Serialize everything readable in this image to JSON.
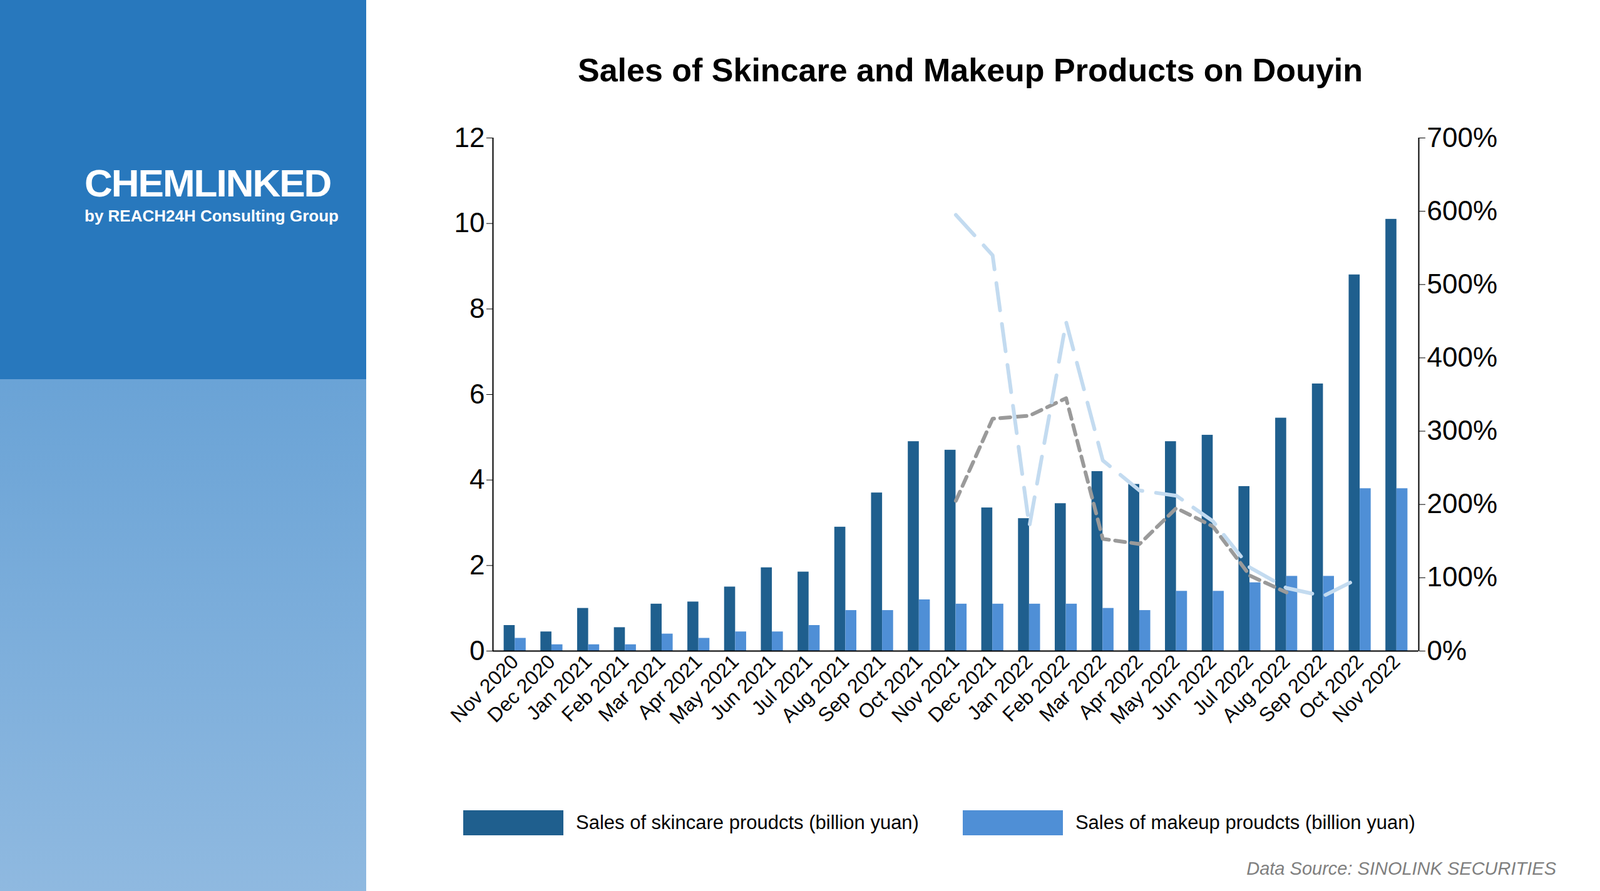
{
  "branding": {
    "logo": "CHEMLINKED",
    "tagline": "by REACH24H Consulting Group"
  },
  "chart_data": {
    "type": "bar",
    "title": "Sales of Skincare and Makeup Products on Douyin",
    "caption": "Data Source: SINOLINK SECURITIES",
    "categories": [
      "Nov 2020",
      "Dec 2020",
      "Jan 2021",
      "Feb 2021",
      "Mar 2021",
      "Apr 2021",
      "May 2021",
      "Jun 2021",
      "Jul 2021",
      "Aug 2021",
      "Sep 2021",
      "Oct 2021",
      "Nov 2021",
      "Dec 2021",
      "Jan 2022",
      "Feb 2022",
      "Mar 2022",
      "Apr 2022",
      "May 2022",
      "Jun 2022",
      "Jul 2022",
      "Aug 2022",
      "Sep 2022",
      "Oct 2022",
      "Nov 2022"
    ],
    "series": [
      {
        "name": "Sales of skincare proudcts (billion yuan)",
        "type": "bar",
        "color": "#1f5f8e",
        "values": [
          0.6,
          0.45,
          1.0,
          0.55,
          1.1,
          1.15,
          1.5,
          1.95,
          1.85,
          2.9,
          3.7,
          4.9,
          4.7,
          3.35,
          3.1,
          3.45,
          4.2,
          3.9,
          4.9,
          5.05,
          3.85,
          5.45,
          6.25,
          8.8,
          10.1
        ]
      },
      {
        "name": "Sales of makeup proudcts (billion yuan)",
        "type": "bar",
        "color": "#4f8fd6",
        "values": [
          0.3,
          0.15,
          0.15,
          0.15,
          0.4,
          0.3,
          0.45,
          0.45,
          0.6,
          0.95,
          0.95,
          1.2,
          1.1,
          1.1,
          1.1,
          1.1,
          1.0,
          0.95,
          1.4,
          1.4,
          1.6,
          1.75,
          1.75,
          3.8,
          3.8
        ]
      },
      {
        "type": "line",
        "axis": "y2",
        "color": "#9a9a9a",
        "line_style": "dashed",
        "values": [
          null,
          null,
          null,
          null,
          null,
          null,
          null,
          null,
          null,
          null,
          null,
          null,
          205,
          317,
          321,
          345,
          153,
          146,
          195,
          170,
          103,
          80,
          null,
          null,
          null
        ]
      },
      {
        "type": "line",
        "axis": "y2",
        "color": "#c3dbf0",
        "line_style": "longdash",
        "values": [
          null,
          null,
          null,
          null,
          null,
          null,
          null,
          null,
          null,
          null,
          null,
          null,
          595,
          540,
          170,
          449,
          260,
          219,
          212,
          177,
          114,
          86,
          75,
          100,
          null
        ]
      }
    ],
    "ylim": [
      0,
      12
    ],
    "yticks": [
      0,
      2,
      4,
      6,
      8,
      10,
      12
    ],
    "y2lim": [
      0,
      700
    ],
    "y2ticks": [
      {
        "value": 0,
        "label": "0%"
      },
      {
        "value": 100,
        "label": "100%"
      },
      {
        "value": 200,
        "label": "200%"
      },
      {
        "value": 300,
        "label": "300%"
      },
      {
        "value": 400,
        "label": "400%"
      },
      {
        "value": 500,
        "label": "500%"
      },
      {
        "value": 600,
        "label": "600%"
      },
      {
        "value": 700,
        "label": "700%"
      }
    ],
    "grid": false,
    "legend": "bottom"
  }
}
